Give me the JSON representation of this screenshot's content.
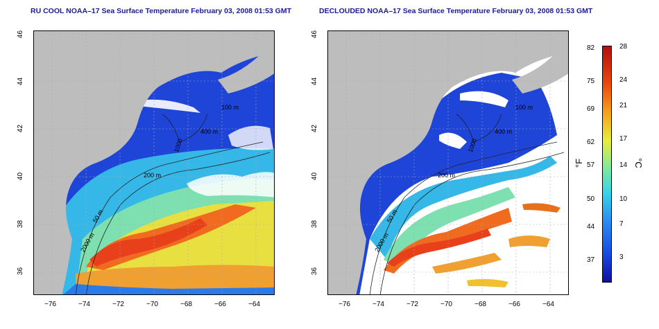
{
  "titles": {
    "left": "RU COOL NOAA–17 Sea Surface Temperature February 03, 2008 01:53 GMT",
    "right": "DECLOUDED NOAA–17 Sea Surface Temperature February 03, 2008 01:53 GMT"
  },
  "axes": {
    "x_ticks": [
      "−76",
      "−74",
      "−72",
      "−70",
      "−68",
      "−66",
      "−64"
    ],
    "y_ticks": [
      "46",
      "44",
      "42",
      "40",
      "38",
      "36"
    ]
  },
  "contours": {
    "c50_left": "50 m",
    "c200_left": "200 m",
    "c1000_left": "1000",
    "c2000_left": "2000 m",
    "c400_left": "400 m",
    "c100_left": "100 m",
    "c50_right": "50 m",
    "c200_right": "200 m",
    "c1000_right": "1000",
    "c2000_right": "2000 m",
    "c400_right": "400 m",
    "c100_right": "100 m"
  },
  "colorbar": {
    "fahrenheit": [
      "82",
      "75",
      "69",
      "62",
      "57",
      "50",
      "44",
      "37"
    ],
    "celsius": [
      "28",
      "24",
      "21",
      "17",
      "14",
      "10",
      "7",
      "3"
    ],
    "unit_f": "°F",
    "unit_c": "°C"
  },
  "colors": {
    "land": "#bdbdbd",
    "cloud": "#ffffff",
    "cold": "#1a3ad8",
    "warm": "#e8501a"
  }
}
